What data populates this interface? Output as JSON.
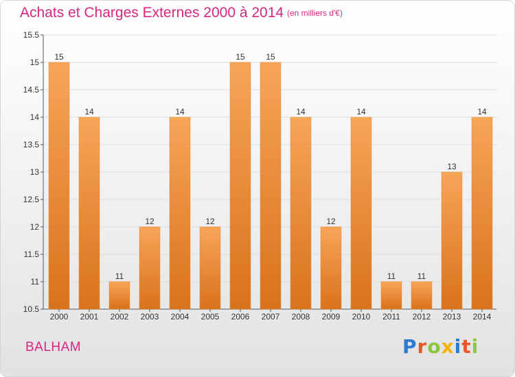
{
  "header": {
    "title": "Achats et Charges Externes 2000 à 2014",
    "subtitle": "(en milliers d'€)"
  },
  "footer": {
    "commune": "BALHAM",
    "brand": "Proxiti",
    "brand_colors": [
      "#2b7bd3",
      "#e8582b",
      "#8cc63f",
      "#f5b400",
      "#2b7bd3",
      "#e8582b",
      "#8cc63f"
    ]
  },
  "chart_data": {
    "type": "bar",
    "categories": [
      "2000",
      "2001",
      "2002",
      "2003",
      "2004",
      "2005",
      "2006",
      "2007",
      "2008",
      "2009",
      "2010",
      "2011",
      "2012",
      "2013",
      "2014"
    ],
    "values": [
      15,
      14,
      11,
      12,
      14,
      12,
      15,
      15,
      14,
      12,
      14,
      11,
      11,
      13,
      14
    ],
    "value_labels": [
      "15",
      "14",
      "11",
      "12",
      "14",
      "12",
      "15",
      "15",
      "14",
      "12",
      "14",
      "11",
      "11",
      "13",
      "14"
    ],
    "title": "Achats et Charges Externes 2000 à 2014",
    "xlabel": "",
    "ylabel": "",
    "ylim": [
      10.5,
      15.5
    ],
    "yticks": [
      10.5,
      11,
      11.5,
      12,
      12.5,
      13,
      13.5,
      14,
      14.5,
      15,
      15.5
    ],
    "ytick_labels": [
      "10.5",
      "11",
      "11.5",
      "12",
      "12.5",
      "13",
      "13.5",
      "14",
      "14.5",
      "15",
      "15.5"
    ],
    "grid": true,
    "bar_color_top": "#f7a558",
    "bar_color_bottom": "#d9721c"
  }
}
